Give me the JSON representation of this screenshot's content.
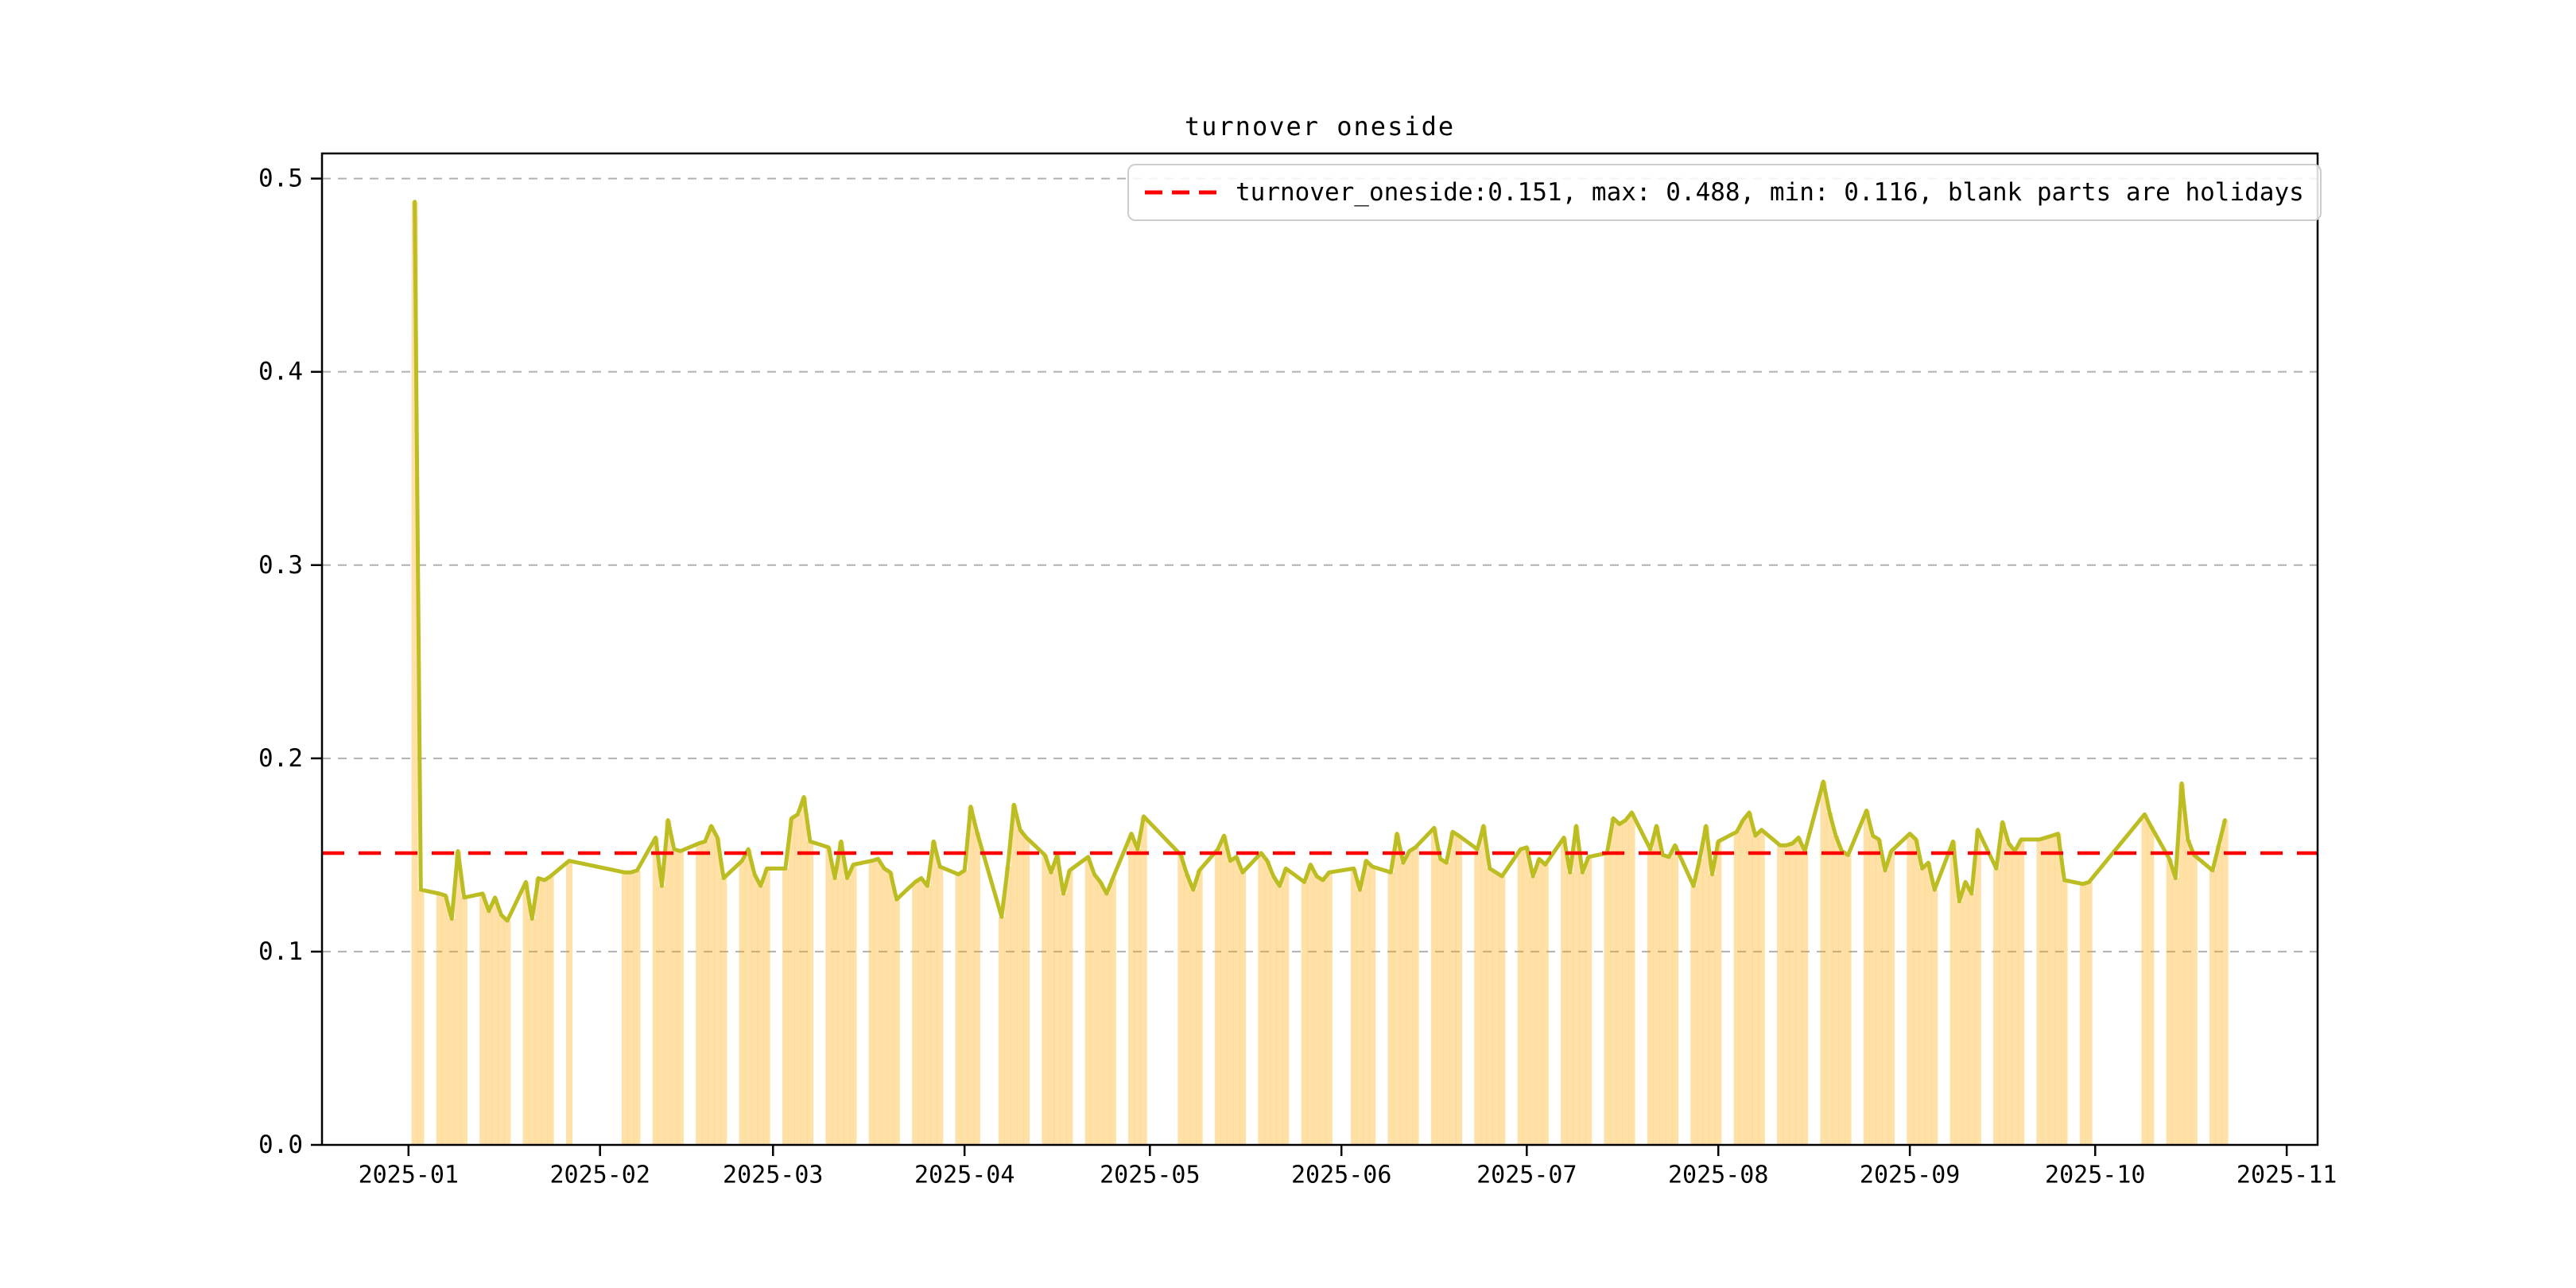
{
  "figure": {
    "background": "#ffffff",
    "frame_color": "#000000"
  },
  "chart_data": {
    "type": "line",
    "title": "turnover oneside",
    "legend": {
      "label": "turnover_oneside:0.151, max: 0.488, min: 0.116, blank parts are holidays",
      "position": "upper right",
      "marker_color": "#ff0000",
      "marker_style": "dashed"
    },
    "stats": {
      "turnover_oneside": 0.151,
      "max": 0.488,
      "min": 0.116,
      "note": "blank parts are holidays"
    },
    "hline": {
      "value": 0.151,
      "color": "#ff0000",
      "style": "dashed"
    },
    "ylim": [
      0.0,
      0.513
    ],
    "xlim": [
      "2024-12-18",
      "2025-11-06"
    ],
    "y_ticks": [
      "0.0",
      "0.1",
      "0.2",
      "0.3",
      "0.4",
      "0.5"
    ],
    "x_ticks": [
      "2025-01",
      "2025-02",
      "2025-03",
      "2025-04",
      "2025-05",
      "2025-06",
      "2025-07",
      "2025-08",
      "2025-09",
      "2025-10",
      "2025-11"
    ],
    "grid": {
      "axis": "y",
      "style": "dashed",
      "color": "#b0b0b0"
    },
    "series": [
      {
        "name": "turnover_oneside",
        "type": "bar",
        "color": "rgba(255,165,0,0.35)"
      },
      {
        "name": "turnover_oneside",
        "type": "line",
        "color": "#bcbd22",
        "width": 5
      }
    ],
    "dates": [
      "2025-01-02",
      "2025-01-03",
      "2025-01-06",
      "2025-01-07",
      "2025-01-08",
      "2025-01-09",
      "2025-01-10",
      "2025-01-13",
      "2025-01-14",
      "2025-01-15",
      "2025-01-16",
      "2025-01-17",
      "2025-01-20",
      "2025-01-21",
      "2025-01-22",
      "2025-01-23",
      "2025-01-24",
      "2025-01-27",
      "2025-02-05",
      "2025-02-06",
      "2025-02-07",
      "2025-02-10",
      "2025-02-11",
      "2025-02-12",
      "2025-02-13",
      "2025-02-14",
      "2025-02-17",
      "2025-02-18",
      "2025-02-19",
      "2025-02-20",
      "2025-02-21",
      "2025-02-24",
      "2025-02-25",
      "2025-02-26",
      "2025-02-27",
      "2025-02-28",
      "2025-03-03",
      "2025-03-04",
      "2025-03-05",
      "2025-03-06",
      "2025-03-07",
      "2025-03-10",
      "2025-03-11",
      "2025-03-12",
      "2025-03-13",
      "2025-03-14",
      "2025-03-17",
      "2025-03-18",
      "2025-03-19",
      "2025-03-20",
      "2025-03-21",
      "2025-03-24",
      "2025-03-25",
      "2025-03-26",
      "2025-03-27",
      "2025-03-28",
      "2025-03-31",
      "2025-04-01",
      "2025-04-02",
      "2025-04-03",
      "2025-04-07",
      "2025-04-08",
      "2025-04-09",
      "2025-04-10",
      "2025-04-11",
      "2025-04-14",
      "2025-04-15",
      "2025-04-16",
      "2025-04-17",
      "2025-04-18",
      "2025-04-21",
      "2025-04-22",
      "2025-04-23",
      "2025-04-24",
      "2025-04-25",
      "2025-04-28",
      "2025-04-29",
      "2025-04-30",
      "2025-05-06",
      "2025-05-07",
      "2025-05-08",
      "2025-05-09",
      "2025-05-12",
      "2025-05-13",
      "2025-05-14",
      "2025-05-15",
      "2025-05-16",
      "2025-05-19",
      "2025-05-20",
      "2025-05-21",
      "2025-05-22",
      "2025-05-23",
      "2025-05-26",
      "2025-05-27",
      "2025-05-28",
      "2025-05-29",
      "2025-05-30",
      "2025-06-03",
      "2025-06-04",
      "2025-06-05",
      "2025-06-06",
      "2025-06-09",
      "2025-06-10",
      "2025-06-11",
      "2025-06-12",
      "2025-06-13",
      "2025-06-16",
      "2025-06-17",
      "2025-06-18",
      "2025-06-19",
      "2025-06-20",
      "2025-06-23",
      "2025-06-24",
      "2025-06-25",
      "2025-06-26",
      "2025-06-27",
      "2025-06-30",
      "2025-07-01",
      "2025-07-02",
      "2025-07-03",
      "2025-07-04",
      "2025-07-07",
      "2025-07-08",
      "2025-07-09",
      "2025-07-10",
      "2025-07-11",
      "2025-07-14",
      "2025-07-15",
      "2025-07-16",
      "2025-07-17",
      "2025-07-18",
      "2025-07-21",
      "2025-07-22",
      "2025-07-23",
      "2025-07-24",
      "2025-07-25",
      "2025-07-28",
      "2025-07-29",
      "2025-07-30",
      "2025-07-31",
      "2025-08-01",
      "2025-08-04",
      "2025-08-05",
      "2025-08-06",
      "2025-08-07",
      "2025-08-08",
      "2025-08-11",
      "2025-08-12",
      "2025-08-13",
      "2025-08-14",
      "2025-08-15",
      "2025-08-18",
      "2025-08-19",
      "2025-08-20",
      "2025-08-21",
      "2025-08-22",
      "2025-08-25",
      "2025-08-26",
      "2025-08-27",
      "2025-08-28",
      "2025-08-29",
      "2025-09-01",
      "2025-09-02",
      "2025-09-03",
      "2025-09-04",
      "2025-09-05",
      "2025-09-08",
      "2025-09-09",
      "2025-09-10",
      "2025-09-11",
      "2025-09-12",
      "2025-09-15",
      "2025-09-16",
      "2025-09-17",
      "2025-09-18",
      "2025-09-19",
      "2025-09-22",
      "2025-09-23",
      "2025-09-24",
      "2025-09-25",
      "2025-09-26",
      "2025-09-29",
      "2025-09-30",
      "2025-10-09",
      "2025-10-10",
      "2025-10-13",
      "2025-10-14",
      "2025-10-15",
      "2025-10-16",
      "2025-10-17",
      "2025-10-20",
      "2025-10-21",
      "2025-10-22"
    ],
    "values": [
      0.488,
      0.132,
      0.13,
      0.129,
      0.117,
      0.152,
      0.128,
      0.13,
      0.121,
      0.128,
      0.119,
      0.116,
      0.136,
      0.117,
      0.138,
      0.137,
      0.139,
      0.147,
      0.141,
      0.141,
      0.142,
      0.159,
      0.134,
      0.168,
      0.153,
      0.152,
      0.156,
      0.157,
      0.165,
      0.159,
      0.138,
      0.147,
      0.153,
      0.14,
      0.134,
      0.143,
      0.143,
      0.169,
      0.171,
      0.18,
      0.157,
      0.154,
      0.138,
      0.157,
      0.138,
      0.145,
      0.147,
      0.148,
      0.143,
      0.141,
      0.127,
      0.136,
      0.138,
      0.134,
      0.157,
      0.144,
      0.14,
      0.142,
      0.175,
      0.162,
      0.118,
      0.144,
      0.176,
      0.163,
      0.159,
      0.15,
      0.141,
      0.15,
      0.13,
      0.142,
      0.149,
      0.14,
      0.136,
      0.13,
      0.138,
      0.161,
      0.153,
      0.17,
      0.15,
      0.14,
      0.132,
      0.142,
      0.153,
      0.16,
      0.147,
      0.149,
      0.141,
      0.151,
      0.147,
      0.139,
      0.134,
      0.143,
      0.136,
      0.145,
      0.139,
      0.137,
      0.141,
      0.143,
      0.132,
      0.147,
      0.144,
      0.141,
      0.161,
      0.146,
      0.152,
      0.154,
      0.164,
      0.148,
      0.146,
      0.162,
      0.16,
      0.153,
      0.165,
      0.143,
      0.141,
      0.139,
      0.153,
      0.154,
      0.139,
      0.148,
      0.145,
      0.159,
      0.141,
      0.165,
      0.141,
      0.149,
      0.151,
      0.169,
      0.166,
      0.168,
      0.172,
      0.153,
      0.165,
      0.15,
      0.149,
      0.155,
      0.134,
      0.148,
      0.165,
      0.14,
      0.157,
      0.162,
      0.168,
      0.172,
      0.16,
      0.163,
      0.155,
      0.155,
      0.156,
      0.159,
      0.152,
      0.188,
      0.172,
      0.16,
      0.152,
      0.15,
      0.173,
      0.16,
      0.158,
      0.142,
      0.152,
      0.161,
      0.158,
      0.143,
      0.146,
      0.132,
      0.157,
      0.126,
      0.136,
      0.13,
      0.163,
      0.143,
      0.167,
      0.156,
      0.152,
      0.158,
      0.158,
      0.159,
      0.16,
      0.161,
      0.137,
      0.135,
      0.136,
      0.171,
      0.165,
      0.148,
      0.138,
      0.187,
      0.158,
      0.15,
      0.142,
      0.155,
      0.168
    ]
  }
}
